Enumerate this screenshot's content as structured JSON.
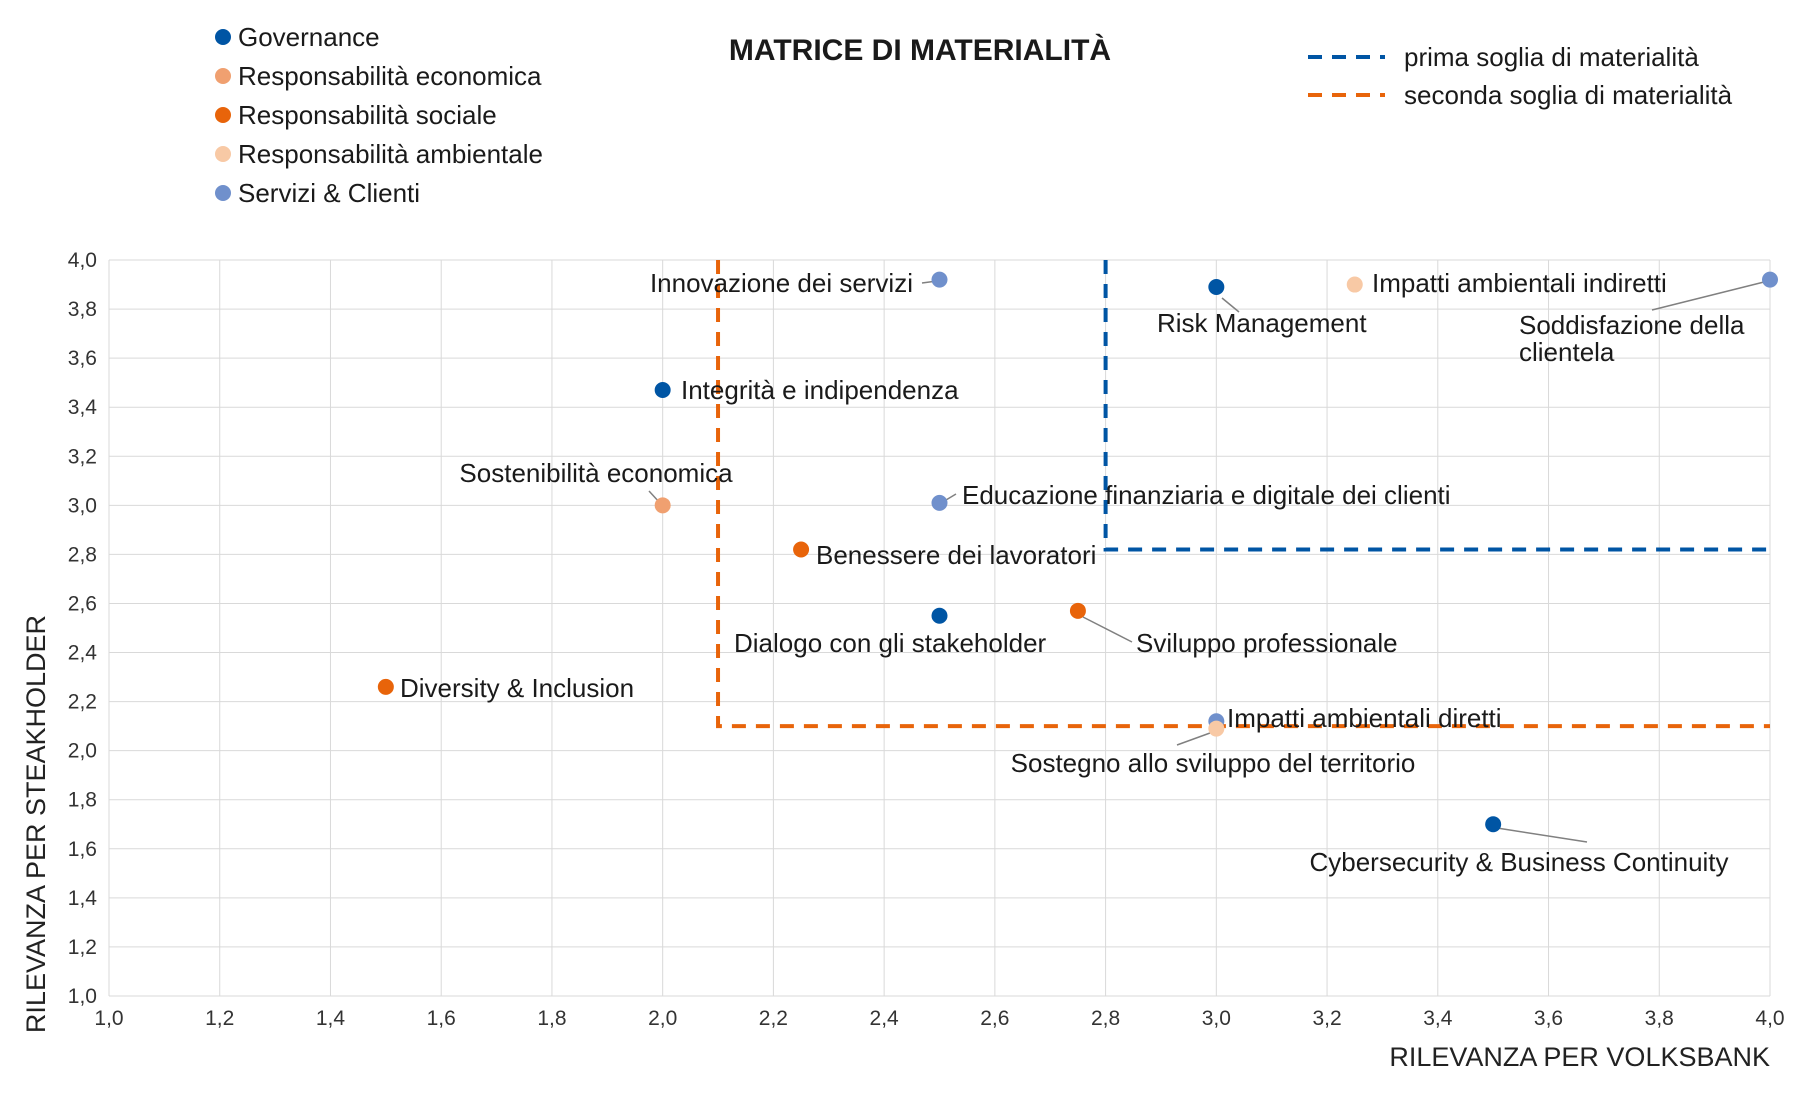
{
  "chart_data": {
    "type": "scatter",
    "title": "MATRICE DI MATERIALITÀ",
    "xlabel": "RILEVANZA PER VOLKSBANK",
    "ylabel": "RILEVANZA PER STEAKHOLDER",
    "xlim": [
      1.0,
      4.0
    ],
    "ylim": [
      1.0,
      4.0
    ],
    "x_ticks": [
      "1,0",
      "1,2",
      "1,4",
      "1,6",
      "1,8",
      "2,0",
      "2,2",
      "2,4",
      "2,6",
      "2,8",
      "3,0",
      "3,2",
      "3,4",
      "3,6",
      "3,8",
      "4,0"
    ],
    "y_ticks": [
      "1,0",
      "1,2",
      "1,4",
      "1,6",
      "1,8",
      "2,0",
      "2,2",
      "2,4",
      "2,6",
      "2,8",
      "3,0",
      "3,2",
      "3,4",
      "3,6",
      "3,8",
      "4,0"
    ],
    "grid": true,
    "legend_position": "top",
    "categories": [
      {
        "key": "governance",
        "name": "Governance",
        "color": "#0055a4"
      },
      {
        "key": "economica",
        "name": "Responsabilità economica",
        "color": "#f0a070"
      },
      {
        "key": "sociale",
        "name": "Responsabilità sociale",
        "color": "#e8640a"
      },
      {
        "key": "ambientale",
        "name": "Responsabilità ambientale",
        "color": "#f8c9a5"
      },
      {
        "key": "servizi",
        "name": "Servizi & Clienti",
        "color": "#7090cc"
      }
    ],
    "thresholds": [
      {
        "name": "prima soglia di materialità",
        "color": "#0055a4",
        "x": 2.8,
        "y": 2.82
      },
      {
        "name": "seconda soglia di materialità",
        "color": "#e8640a",
        "x": 2.1,
        "y": 2.1
      }
    ],
    "points": [
      {
        "label": "Innovazione dei servizi",
        "category": "servizi",
        "x": 2.5,
        "y": 3.92
      },
      {
        "label": "Risk Management",
        "category": "governance",
        "x": 3.0,
        "y": 3.89
      },
      {
        "label": "Impatti ambientali indiretti",
        "category": "ambientale",
        "x": 3.25,
        "y": 3.9
      },
      {
        "label": "Soddisfazione della clientela",
        "category": "servizi",
        "x": 4.0,
        "y": 3.92
      },
      {
        "label": "Integrità e indipendenza",
        "category": "governance",
        "x": 2.0,
        "y": 3.47
      },
      {
        "label": "Sostenibilità economica",
        "category": "economica",
        "x": 2.0,
        "y": 3.0
      },
      {
        "label": "Educazione finanziaria e digitale dei clienti",
        "category": "servizi",
        "x": 2.5,
        "y": 3.01
      },
      {
        "label": "Benessere dei lavoratori",
        "category": "sociale",
        "x": 2.25,
        "y": 2.82
      },
      {
        "label": "Dialogo con gli stakeholder",
        "category": "governance",
        "x": 2.5,
        "y": 2.55
      },
      {
        "label": "Sviluppo professionale",
        "category": "sociale",
        "x": 2.75,
        "y": 2.57
      },
      {
        "label": "Diversity & Inclusion",
        "category": "sociale",
        "x": 1.5,
        "y": 2.26
      },
      {
        "label": "Impatti ambientali diretti",
        "category": "servizi",
        "x": 3.0,
        "y": 2.12
      },
      {
        "label": "Sostegno allo sviluppo del territorio",
        "category": "ambientale",
        "x": 3.0,
        "y": 2.09
      },
      {
        "label": "Cybersecurity & Business Continuity",
        "category": "governance",
        "x": 3.5,
        "y": 1.7
      }
    ]
  }
}
